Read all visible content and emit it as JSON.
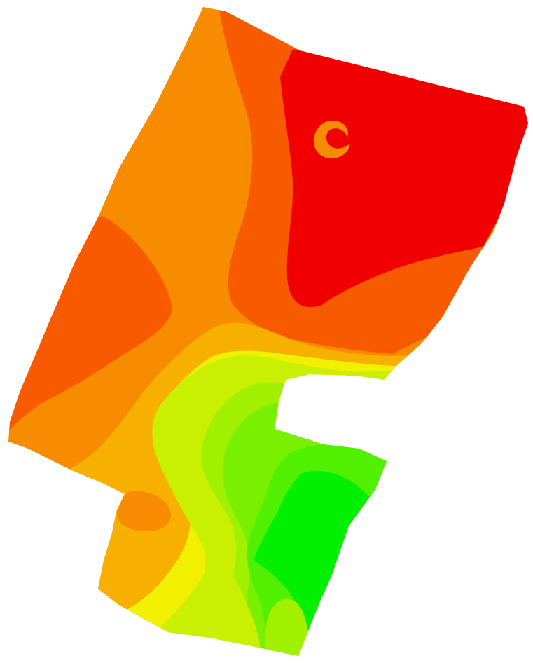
{
  "map": {
    "type": "contour-zone-map",
    "background_color": "#ffffff",
    "zone_colors": {
      "red": "#f00000",
      "red_orange": "#f85a00",
      "orange": "#f88c00",
      "amber": "#f8b000",
      "yellow": "#f0f000",
      "yellow_green": "#c8f000",
      "lime": "#a0f000",
      "light_green": "#78f000",
      "green": "#50f000",
      "bright_green": "#00f000"
    },
    "zones": [
      {
        "id": "orange-base",
        "color_key": "orange"
      },
      {
        "id": "red-orange-west",
        "color_key": "red_orange"
      },
      {
        "id": "red-orange-north",
        "color_key": "red_orange"
      },
      {
        "id": "red-core",
        "color_key": "red"
      },
      {
        "id": "orange-ring",
        "color_key": "orange"
      },
      {
        "id": "amber-band",
        "color_key": "amber"
      },
      {
        "id": "orange-pocket",
        "color_key": "orange"
      },
      {
        "id": "yellow-band",
        "color_key": "yellow"
      },
      {
        "id": "yellow-green-band",
        "color_key": "yellow_green"
      },
      {
        "id": "lime-band",
        "color_key": "lime"
      },
      {
        "id": "light-green-band",
        "color_key": "light_green"
      },
      {
        "id": "green-band",
        "color_key": "green"
      },
      {
        "id": "bright-green-core",
        "color_key": "bright_green"
      },
      {
        "id": "south-yellow-green",
        "color_key": "yellow_green"
      },
      {
        "id": "south-lime",
        "color_key": "lime"
      }
    ]
  }
}
